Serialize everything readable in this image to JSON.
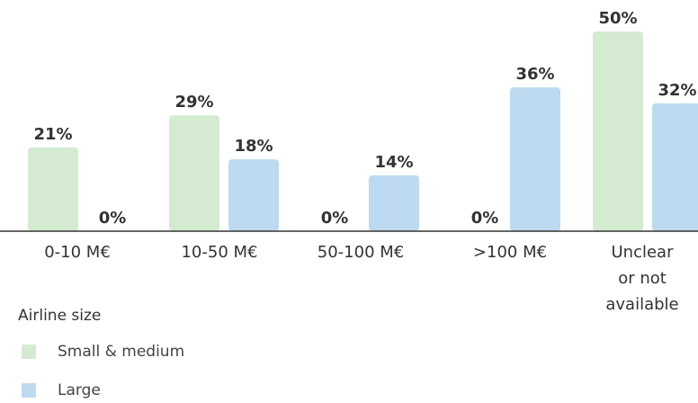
{
  "chart_data": {
    "type": "bar",
    "categories": [
      [
        "0-10 M€"
      ],
      [
        "10-50 M€"
      ],
      [
        "50-100 M€"
      ],
      [
        ">100 M€"
      ],
      [
        "Unclear",
        "or not",
        "available"
      ]
    ],
    "series": [
      {
        "name": "Small & medium",
        "color": "#d4ebd1",
        "values": [
          21,
          29,
          0,
          0,
          50
        ],
        "labels": [
          "21%",
          "29%",
          "0%",
          "0%",
          "50%"
        ]
      },
      {
        "name": "Large",
        "color": "#bddaf1",
        "values": [
          0,
          18,
          14,
          36,
          32
        ],
        "labels": [
          "0%",
          "18%",
          "14%",
          "36%",
          "32%"
        ]
      }
    ],
    "ylim": [
      0,
      50
    ],
    "legend": {
      "title": "Airline size",
      "position": "bottom-left"
    },
    "axis_color": "#333333"
  }
}
